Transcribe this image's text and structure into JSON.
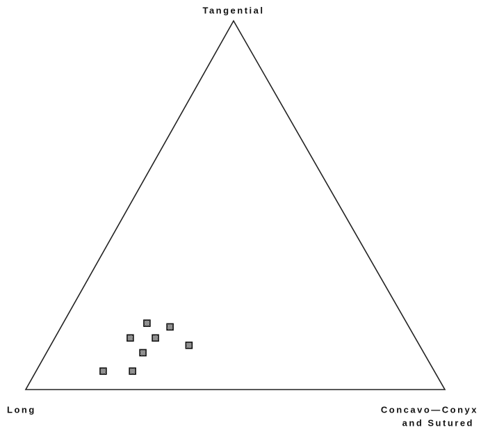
{
  "chart_data": {
    "type": "ternary",
    "vertex_labels": {
      "top": "Tangential",
      "left": "Long",
      "right": [
        "Concavo—Conyx",
        "and Sutured"
      ]
    },
    "series": [
      {
        "marker": "square",
        "left": [
          62,
          57,
          68,
          62,
          55,
          67,
          79,
          72
        ],
        "top": [
          18,
          17,
          14,
          14,
          12,
          10,
          5,
          5
        ],
        "right": [
          20,
          26,
          18,
          24,
          33,
          23,
          16,
          23
        ]
      }
    ]
  }
}
